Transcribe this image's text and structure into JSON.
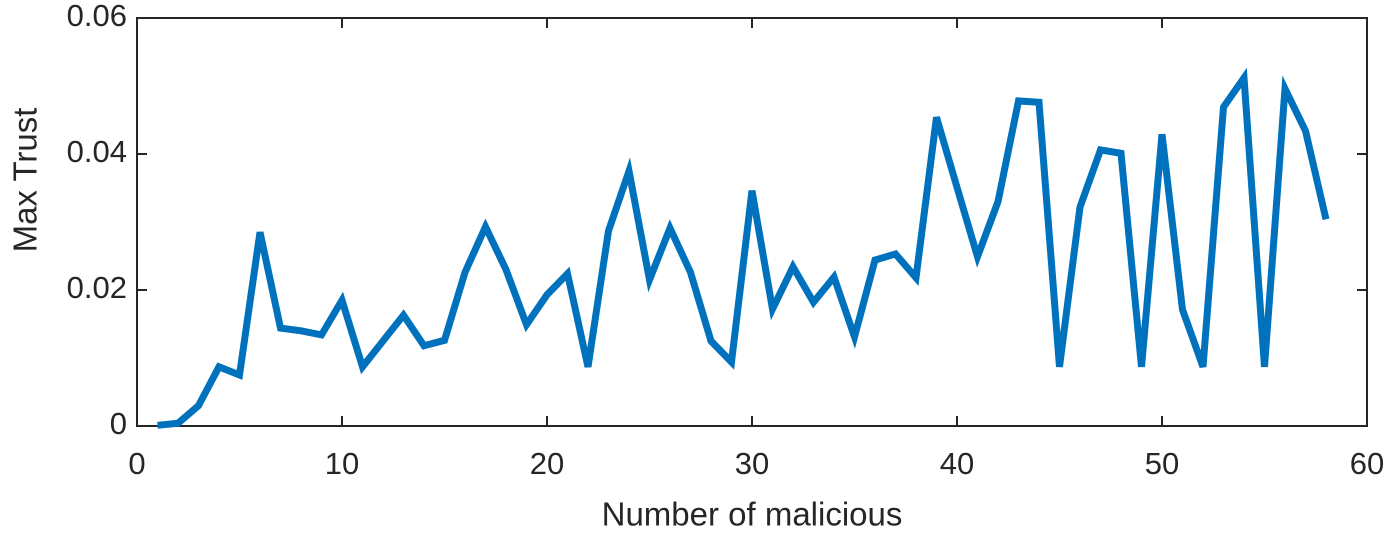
{
  "chart_data": {
    "type": "line",
    "xlabel": "Number of malicious",
    "ylabel": "Max Trust",
    "x": [
      1,
      2,
      3,
      4,
      5,
      6,
      7,
      8,
      9,
      10,
      11,
      12,
      13,
      14,
      15,
      16,
      17,
      18,
      19,
      20,
      21,
      22,
      23,
      24,
      25,
      26,
      27,
      28,
      29,
      30,
      31,
      32,
      33,
      34,
      35,
      36,
      37,
      38,
      39,
      40,
      41,
      42,
      43,
      44,
      45,
      46,
      47,
      48,
      49,
      50,
      51,
      52,
      53,
      54,
      55,
      56,
      57,
      58
    ],
    "series": [
      {
        "color": "#0072bd",
        "values": [
          0.0001,
          0.0004,
          0.003,
          0.0087,
          0.0075,
          0.0285,
          0.0144,
          0.014,
          0.0134,
          0.0185,
          0.0087,
          0.0125,
          0.0163,
          0.0118,
          0.0126,
          0.0226,
          0.0293,
          0.023,
          0.0149,
          0.0193,
          0.0224,
          0.0087,
          0.0287,
          0.0375,
          0.0215,
          0.0291,
          0.0226,
          0.0125,
          0.0094,
          0.0346,
          0.0172,
          0.0234,
          0.0182,
          0.0219,
          0.0131,
          0.0244,
          0.0253,
          0.0218,
          0.0454,
          0.0351,
          0.0249,
          0.033,
          0.0478,
          0.0476,
          0.0087,
          0.0322,
          0.0406,
          0.0401,
          0.0087,
          0.0429,
          0.0171,
          0.0087,
          0.0469,
          0.0512,
          0.0087,
          0.0496,
          0.0434,
          0.0304
        ]
      }
    ],
    "xlim": [
      0,
      60
    ],
    "xticks": [
      0,
      10,
      20,
      30,
      40,
      50,
      60
    ],
    "ylim": [
      0,
      0.06
    ],
    "yticks": [
      0,
      0.02,
      0.04,
      0.06
    ]
  }
}
